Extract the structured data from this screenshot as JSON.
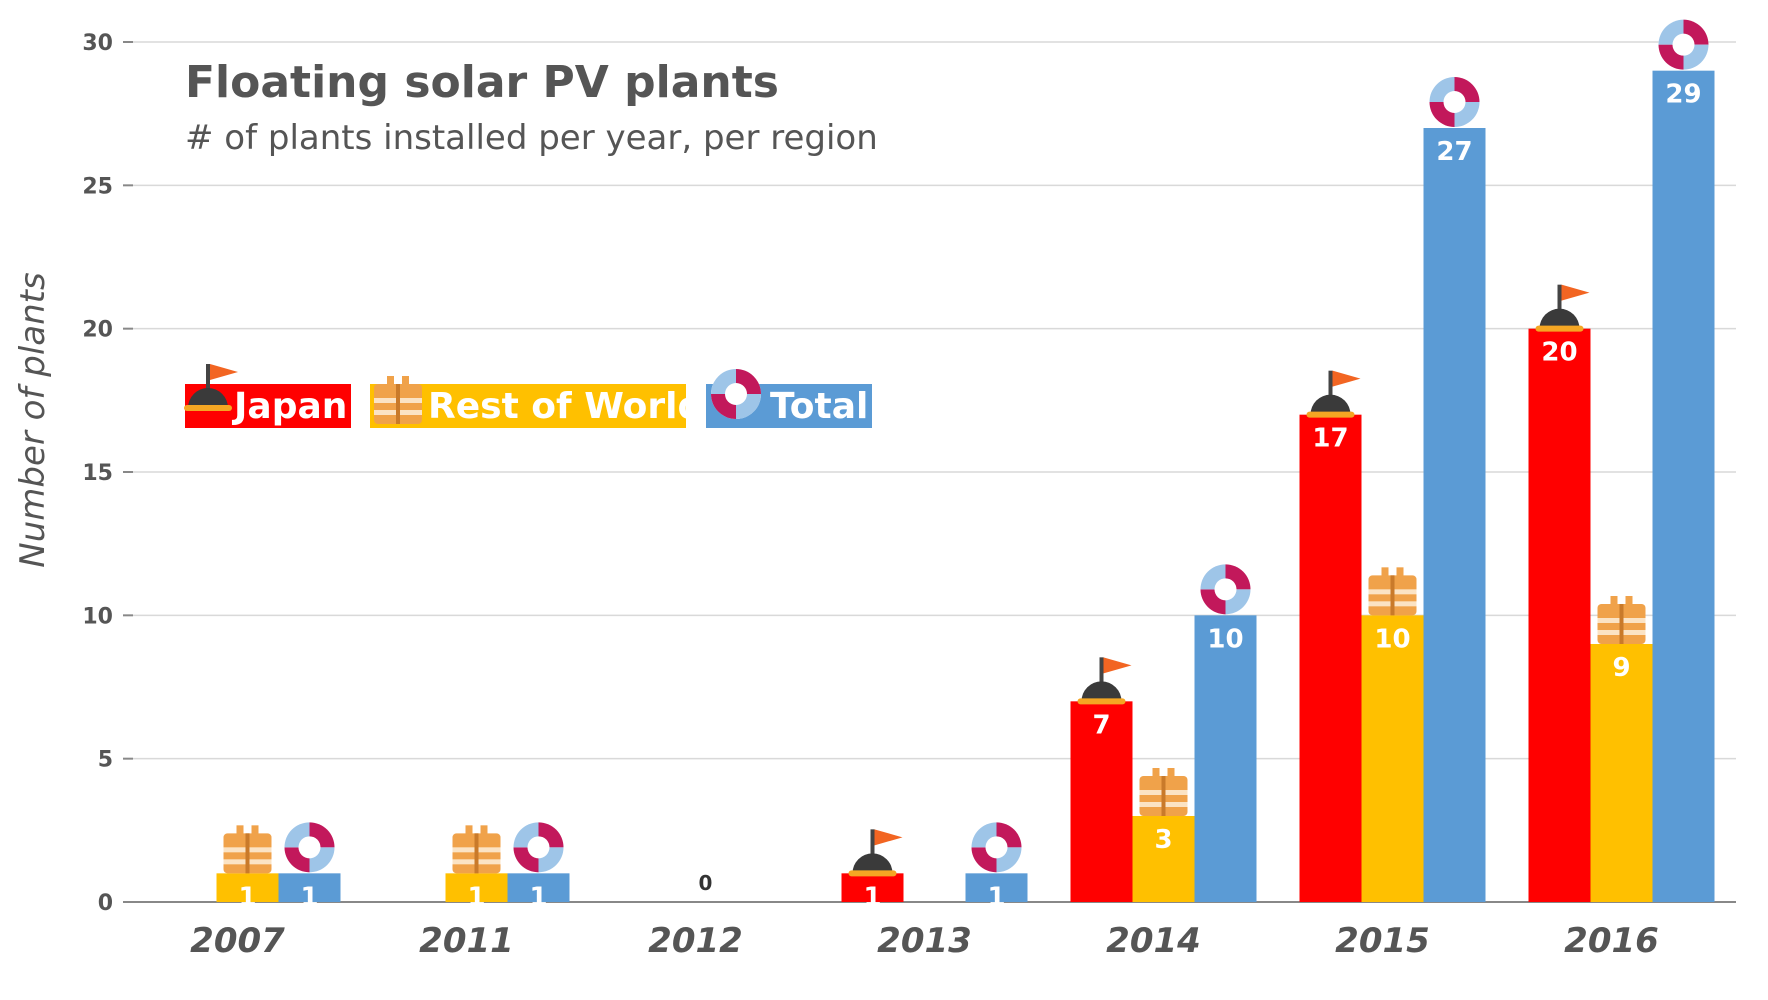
{
  "chart_data": {
    "type": "bar",
    "title": "Floating solar PV plants",
    "subtitle": "# of plants installed per year, per region",
    "ylabel": "Number of plants",
    "xlabel": "",
    "ylim": [
      0,
      30
    ],
    "yticks": [
      0,
      5,
      10,
      15,
      20,
      25,
      30
    ],
    "categories": [
      "2007",
      "2011",
      "2012",
      "2013",
      "2014",
      "2015",
      "2016"
    ],
    "series": [
      {
        "name": "Japan",
        "color": "#ff0000",
        "icon": "buoy-flag-icon",
        "values": [
          0,
          0,
          0,
          1,
          7,
          17,
          20
        ]
      },
      {
        "name": "Rest of World",
        "color": "#ffc000",
        "icon": "life-vest-icon",
        "values": [
          1,
          1,
          0,
          0,
          3,
          10,
          9
        ]
      },
      {
        "name": "Total",
        "color": "#5b9bd5",
        "icon": "life-ring-icon",
        "values": [
          1,
          1,
          0,
          1,
          10,
          27,
          29
        ]
      }
    ],
    "zero_labels": [
      {
        "category": "2012",
        "text": "0"
      }
    ],
    "grid": true,
    "legend_position": "upper-left"
  }
}
